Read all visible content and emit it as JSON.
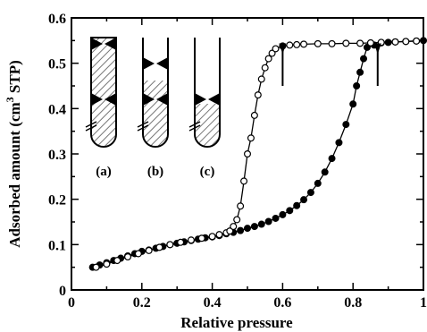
{
  "chart_data": {
    "type": "scatter",
    "xlabel": "Relative pressure",
    "ylabel": "Adsorbed amount (cm",
    "ylabel_sup": "3",
    "ylabel_suffix": " STP)",
    "xlim": [
      0,
      1
    ],
    "ylim": [
      0,
      0.6
    ],
    "x_ticks": [
      0,
      0.2,
      0.4,
      0.6,
      0.8,
      1
    ],
    "x_tick_labels": [
      "0",
      "0.2",
      "0.4",
      "0.6",
      "0.8",
      "1"
    ],
    "y_ticks": [
      0,
      0.1,
      0.2,
      0.3,
      0.4,
      0.5,
      0.6
    ],
    "y_tick_labels": [
      "0",
      "0.1",
      "0.2",
      "0.3",
      "0.4",
      "0.5",
      "0.6"
    ],
    "grid": false,
    "series": [
      {
        "marker": "filled-circle",
        "color": "#000000",
        "points": [
          [
            0.06,
            0.05
          ],
          [
            0.08,
            0.055
          ],
          [
            0.1,
            0.06
          ],
          [
            0.12,
            0.065
          ],
          [
            0.14,
            0.07
          ],
          [
            0.16,
            0.075
          ],
          [
            0.18,
            0.08
          ],
          [
            0.2,
            0.085
          ],
          [
            0.22,
            0.088
          ],
          [
            0.24,
            0.092
          ],
          [
            0.26,
            0.096
          ],
          [
            0.28,
            0.1
          ],
          [
            0.3,
            0.103
          ],
          [
            0.32,
            0.106
          ],
          [
            0.34,
            0.109
          ],
          [
            0.36,
            0.112
          ],
          [
            0.38,
            0.115
          ],
          [
            0.4,
            0.117
          ],
          [
            0.42,
            0.12
          ],
          [
            0.44,
            0.124
          ],
          [
            0.46,
            0.127
          ],
          [
            0.48,
            0.131
          ],
          [
            0.5,
            0.136
          ],
          [
            0.52,
            0.14
          ],
          [
            0.54,
            0.145
          ],
          [
            0.56,
            0.151
          ],
          [
            0.58,
            0.158
          ],
          [
            0.6,
            0.166
          ],
          [
            0.62,
            0.175
          ],
          [
            0.64,
            0.186
          ],
          [
            0.66,
            0.199
          ],
          [
            0.68,
            0.215
          ],
          [
            0.7,
            0.235
          ],
          [
            0.72,
            0.26
          ],
          [
            0.74,
            0.29
          ],
          [
            0.76,
            0.325
          ],
          [
            0.78,
            0.365
          ],
          [
            0.8,
            0.41
          ],
          [
            0.81,
            0.45
          ],
          [
            0.82,
            0.48
          ],
          [
            0.83,
            0.51
          ],
          [
            0.84,
            0.535
          ],
          [
            0.86,
            0.54
          ],
          [
            0.88,
            0.545
          ],
          [
            0.9,
            0.546
          ],
          [
            0.92,
            0.547
          ],
          [
            0.95,
            0.548
          ],
          [
            0.98,
            0.549
          ],
          [
            1.0,
            0.55
          ]
        ]
      },
      {
        "marker": "open-circle",
        "color": "#000000",
        "points": [
          [
            0.07,
            0.05
          ],
          [
            0.1,
            0.057
          ],
          [
            0.13,
            0.065
          ],
          [
            0.16,
            0.073
          ],
          [
            0.19,
            0.08
          ],
          [
            0.22,
            0.087
          ],
          [
            0.25,
            0.094
          ],
          [
            0.28,
            0.1
          ],
          [
            0.31,
            0.105
          ],
          [
            0.34,
            0.11
          ],
          [
            0.37,
            0.114
          ],
          [
            0.4,
            0.118
          ],
          [
            0.42,
            0.122
          ],
          [
            0.44,
            0.126
          ],
          [
            0.45,
            0.13
          ],
          [
            0.46,
            0.14
          ],
          [
            0.47,
            0.155
          ],
          [
            0.48,
            0.185
          ],
          [
            0.49,
            0.24
          ],
          [
            0.5,
            0.3
          ],
          [
            0.51,
            0.335
          ],
          [
            0.52,
            0.385
          ],
          [
            0.53,
            0.43
          ],
          [
            0.54,
            0.465
          ],
          [
            0.55,
            0.49
          ],
          [
            0.56,
            0.51
          ],
          [
            0.57,
            0.522
          ],
          [
            0.58,
            0.532
          ],
          [
            0.6,
            0.538
          ],
          [
            0.62,
            0.54
          ],
          [
            0.64,
            0.541
          ],
          [
            0.66,
            0.542
          ],
          [
            0.7,
            0.543
          ],
          [
            0.74,
            0.543
          ],
          [
            0.78,
            0.544
          ],
          [
            0.82,
            0.544
          ],
          [
            0.85,
            0.545
          ],
          [
            0.88,
            0.546
          ],
          [
            0.92,
            0.547
          ],
          [
            0.95,
            0.548
          ],
          [
            0.98,
            0.549
          ]
        ]
      }
    ],
    "annotations": [
      {
        "type": "arrow-down",
        "x": 0.6,
        "y_from": 0.45,
        "y_to": 0.52
      },
      {
        "type": "arrow-down",
        "x": 0.87,
        "y_from": 0.45,
        "y_to": 0.52
      }
    ],
    "inset_labels": [
      "(a)",
      "(b)",
      "(c)"
    ]
  }
}
